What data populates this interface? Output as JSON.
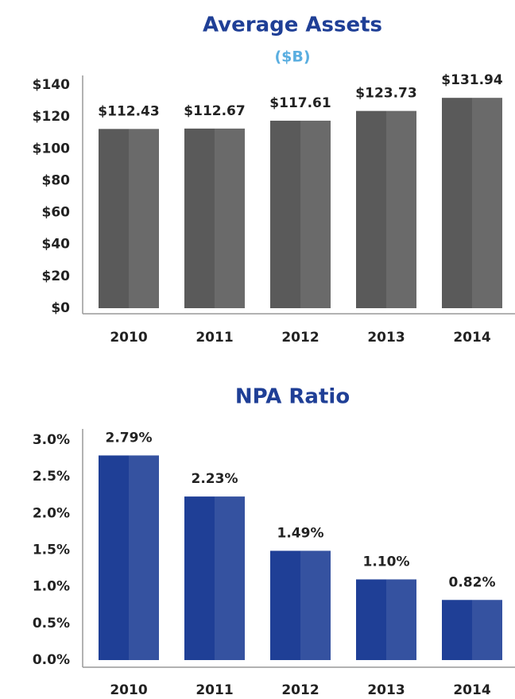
{
  "chart_data": [
    {
      "type": "bar",
      "title": "Average Assets",
      "subtitle": "($B)",
      "categories": [
        "2010",
        "2011",
        "2012",
        "2013",
        "2014"
      ],
      "values": [
        112.43,
        112.67,
        117.61,
        123.73,
        131.94
      ],
      "value_labels": [
        "$112.43",
        "$112.67",
        "$117.61",
        "$123.73",
        "$131.94"
      ],
      "color": "#5a5a5a",
      "ylim": [
        0,
        140
      ],
      "yticks": [
        {
          "value": 0,
          "label": "$0"
        },
        {
          "value": 20,
          "label": "$20"
        },
        {
          "value": 40,
          "label": "$40"
        },
        {
          "value": 60,
          "label": "$60"
        },
        {
          "value": 80,
          "label": "$80"
        },
        {
          "value": 100,
          "label": "$100"
        },
        {
          "value": 120,
          "label": "$120"
        },
        {
          "value": 140,
          "label": "$140"
        }
      ],
      "grid": false
    },
    {
      "type": "bar",
      "title": "NPA Ratio",
      "categories": [
        "2010",
        "2011",
        "2012",
        "2013",
        "2014"
      ],
      "values": [
        2.79,
        2.23,
        1.49,
        1.1,
        0.82
      ],
      "value_labels": [
        "2.79%",
        "2.23%",
        "1.49%",
        "1.10%",
        "0.82%"
      ],
      "color": "#1f3f96",
      "ylim": [
        0,
        3
      ],
      "yticks": [
        {
          "value": 0,
          "label": "0.0%"
        },
        {
          "value": 0.5,
          "label": "0.5%"
        },
        {
          "value": 1,
          "label": "1.0%"
        },
        {
          "value": 1.5,
          "label": "1.5%"
        },
        {
          "value": 2,
          "label": "2.0%"
        },
        {
          "value": 2.5,
          "label": "2.5%"
        },
        {
          "value": 3,
          "label": "3.0%"
        }
      ],
      "grid": false
    }
  ]
}
